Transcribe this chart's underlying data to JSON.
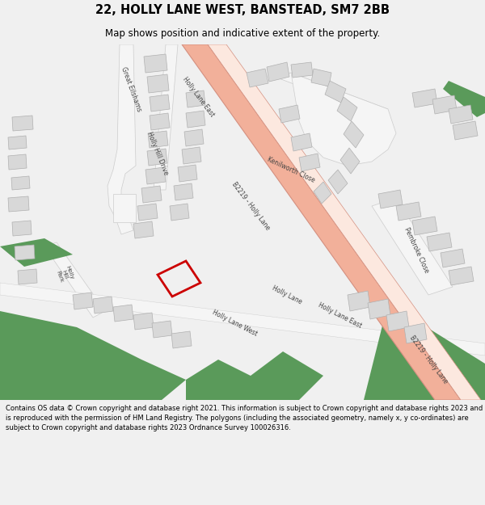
{
  "title": "22, HOLLY LANE WEST, BANSTEAD, SM7 2BB",
  "subtitle": "Map shows position and indicative extent of the property.",
  "footer": "Contains OS data © Crown copyright and database right 2021. This information is subject to Crown copyright and database rights 2023 and is reproduced with the permission of HM Land Registry. The polygons (including the associated geometry, namely x, y co-ordinates) are subject to Crown copyright and database rights 2023 Ordnance Survey 100026316.",
  "map_bg": "#ffffff",
  "road_salmon": "#f2b09a",
  "road_between": "#fce8df",
  "road_outline": "#d49080",
  "green_color": "#5a9a5a",
  "building_color": "#d8d8d8",
  "building_edge": "#b0b0b0",
  "red_outline": "#cc0000",
  "bg_color": "#f0f0f0"
}
